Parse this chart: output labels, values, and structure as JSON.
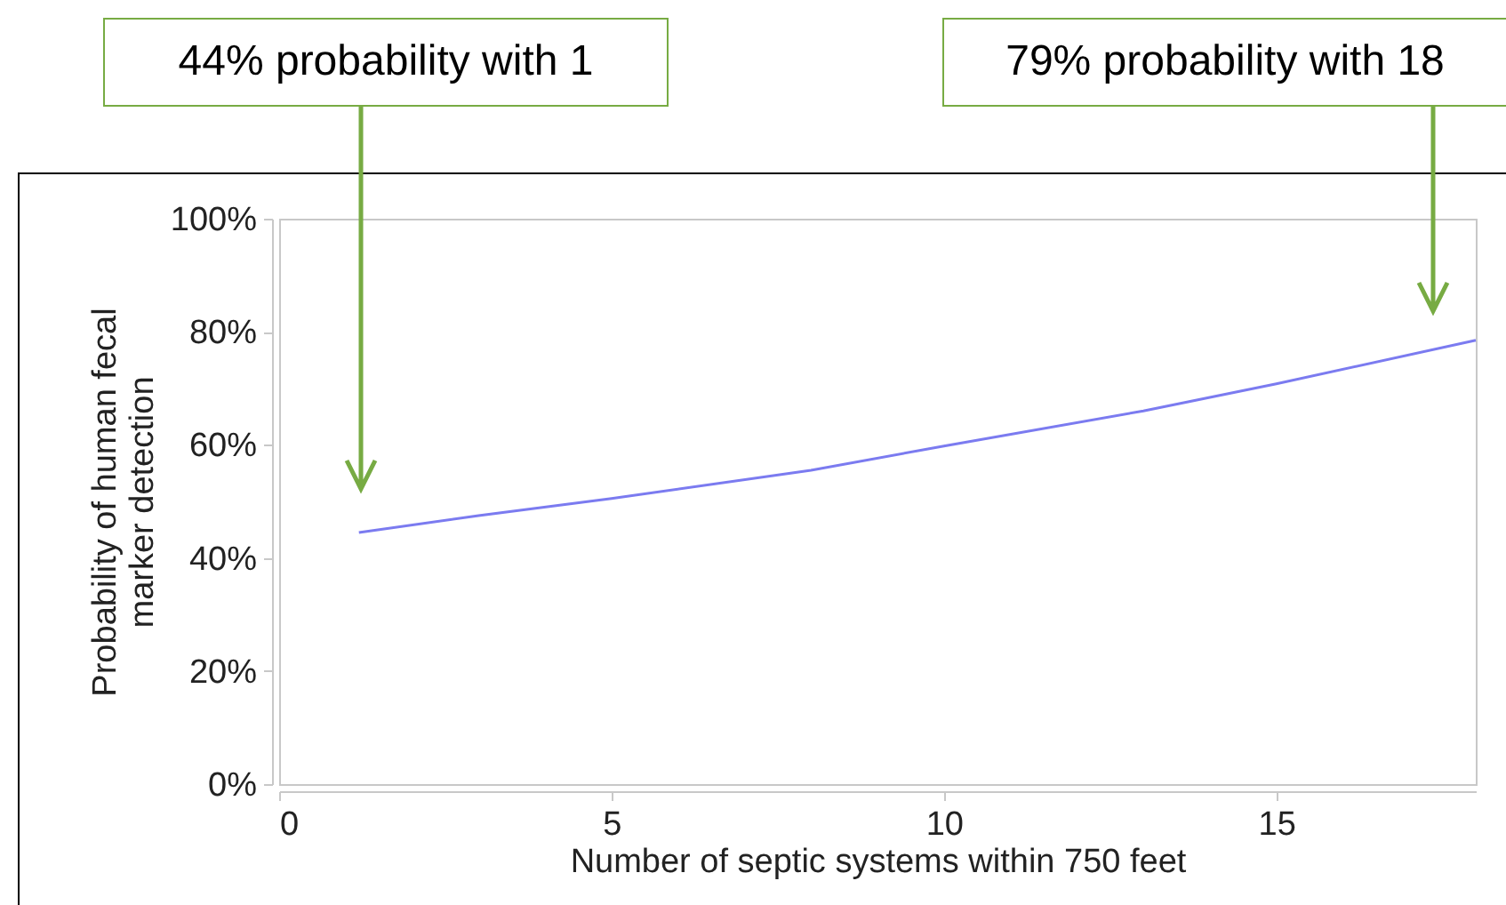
{
  "chart_data": {
    "type": "line",
    "xlabel": "Number of septic systems within 750 feet",
    "ylabel": "Probability of  human fecal marker detection",
    "x": [
      1.2,
      3,
      5,
      8,
      10,
      13,
      15,
      18
    ],
    "series": [
      {
        "color": "#7b7bf0",
        "values": [
          44.5,
          47.5,
          50.5,
          55.5,
          59.8,
          66,
          70.8,
          78.5
        ]
      }
    ],
    "xlim": [
      0,
      18
    ],
    "xticks": [
      0,
      5,
      10,
      15
    ],
    "ylim": [
      0,
      100
    ],
    "yticks": [
      {
        "value": 0,
        "label": "0%"
      },
      {
        "value": 20,
        "label": "20%"
      },
      {
        "value": 40,
        "label": "40%"
      },
      {
        "value": 60,
        "label": "60%"
      },
      {
        "value": 80,
        "label": "80%"
      },
      {
        "value": 100,
        "label": "100%"
      }
    ],
    "grid": false,
    "legend": false,
    "annotations": [
      "44% probability with 1",
      "79% probability with 18"
    ]
  }
}
